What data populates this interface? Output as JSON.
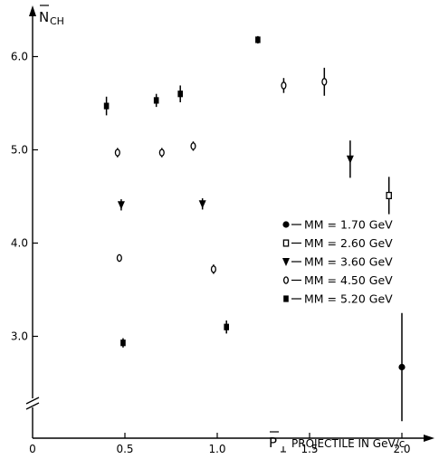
{
  "chart_data": {
    "type": "scatter",
    "title": "",
    "ylabel_main": "N",
    "ylabel_sub": "CH",
    "xlabel_main": "P",
    "xlabel_rest": "PROJECTILE  IN GeV/c",
    "xlim": [
      0,
      2.5
    ],
    "ylim": [
      2.3,
      6.5
    ],
    "x_ticks": [
      0,
      0.5,
      1.0,
      1.5,
      2.0
    ],
    "x_tick_labels": [
      "0",
      "0.5",
      "1.0",
      "1.5",
      "2.0"
    ],
    "y_ticks": [
      3.0,
      4.0,
      5.0,
      6.0
    ],
    "y_tick_labels": [
      "3.0",
      "4.0",
      "5.0",
      "6.0"
    ],
    "axis_break": true,
    "legend_position": "right",
    "series": [
      {
        "name": "MM = 1.70 GeV",
        "marker": "filled-circle",
        "points": [
          {
            "x": 2.0,
            "y": 2.67,
            "err": 0.58
          }
        ]
      },
      {
        "name": "MM = 2.60 GeV",
        "marker": "open-square",
        "points": [
          {
            "x": 1.93,
            "y": 4.51,
            "err": 0.2
          }
        ]
      },
      {
        "name": "MM = 3.60 GeV",
        "marker": "filled-triangle",
        "points": [
          {
            "x": 0.48,
            "y": 4.41,
            "err": 0.06
          },
          {
            "x": 0.92,
            "y": 4.42,
            "err": 0.06
          },
          {
            "x": 1.72,
            "y": 4.9,
            "err": 0.2
          }
        ]
      },
      {
        "name": "MM = 4.50 GeV",
        "marker": "open-circle",
        "points": [
          {
            "x": 0.47,
            "y": 3.84,
            "err": 0.04
          },
          {
            "x": 0.98,
            "y": 3.72,
            "err": 0.05
          },
          {
            "x": 0.46,
            "y": 4.97,
            "err": 0.05
          },
          {
            "x": 0.7,
            "y": 4.97,
            "err": 0.05
          },
          {
            "x": 0.87,
            "y": 5.04,
            "err": 0.05
          },
          {
            "x": 1.36,
            "y": 5.69,
            "err": 0.08
          },
          {
            "x": 1.58,
            "y": 5.73,
            "err": 0.15
          }
        ]
      },
      {
        "name": "MM = 5.20 GeV",
        "marker": "filled-square",
        "points": [
          {
            "x": 0.49,
            "y": 2.93,
            "err": 0.05
          },
          {
            "x": 1.05,
            "y": 3.1,
            "err": 0.07
          },
          {
            "x": 0.4,
            "y": 5.47,
            "err": 0.1
          },
          {
            "x": 0.67,
            "y": 5.53,
            "err": 0.07
          },
          {
            "x": 0.8,
            "y": 5.6,
            "err": 0.09
          },
          {
            "x": 1.22,
            "y": 6.18,
            "err": 0.04
          }
        ]
      }
    ]
  }
}
